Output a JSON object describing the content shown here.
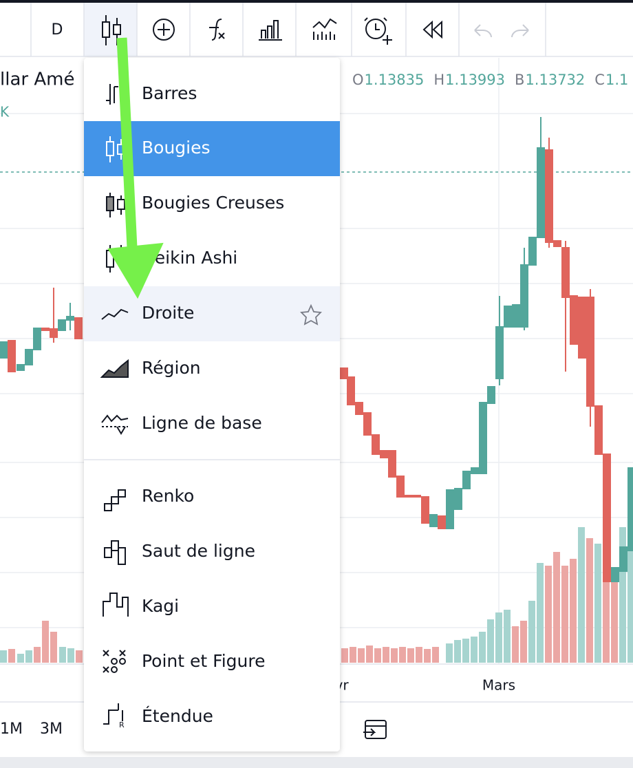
{
  "toolbar": {
    "interval": "D"
  },
  "legend": {
    "symbol": "llar Amé",
    "sub": "K",
    "ohlc": [
      {
        "label": "O",
        "value": "1.13835"
      },
      {
        "label": "H",
        "value": "1.13993"
      },
      {
        "label": "B",
        "value": "1.13732"
      },
      {
        "label": "C",
        "value": "1.1"
      }
    ]
  },
  "menu": {
    "items": [
      {
        "label": "Barres"
      },
      {
        "label": "Bougies"
      },
      {
        "label": "Bougies Creuses"
      },
      {
        "label": "Heikin Ashi"
      },
      {
        "label": "Droite"
      },
      {
        "label": "Région"
      },
      {
        "label": "Ligne de base"
      },
      {
        "label": "Renko"
      },
      {
        "label": "Saut de ligne"
      },
      {
        "label": "Kagi"
      },
      {
        "label": "Point et Figure"
      },
      {
        "label": "Étendue"
      }
    ]
  },
  "time_axis": {
    "labels": [
      "Avr",
      "Mars"
    ]
  },
  "ranges": [
    "1M",
    "3M"
  ]
}
